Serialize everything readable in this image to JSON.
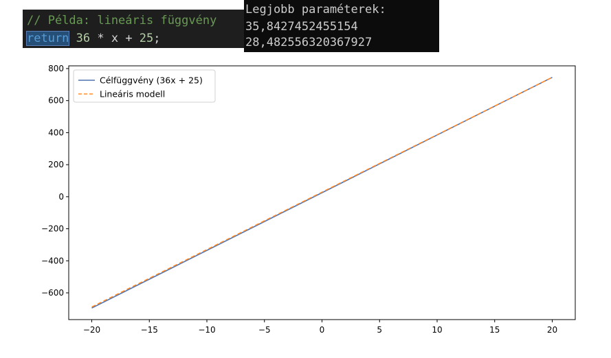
{
  "code_editor": {
    "comment_line": "// Példa: lineáris függvény",
    "return_keyword": "return",
    "expr_a": " 36",
    "expr_b": " * x + ",
    "expr_c": "25",
    "expr_d": ";"
  },
  "console": {
    "header": "Legjobb paraméterek:",
    "values": [
      "35,8427452455154",
      "28,482556320367927"
    ]
  },
  "colors": {
    "target_line": "#4c72b0",
    "model_line": "#ff8c2a",
    "editor_bg": "#1e1e1e",
    "console_bg": "#0c0c0c"
  },
  "chart_data": {
    "type": "line",
    "x": [
      -20,
      20
    ],
    "series": [
      {
        "name": "Célfüggvény (36x + 25)",
        "style": "solid",
        "values": [
          -695,
          745
        ]
      },
      {
        "name": "Lineáris modell",
        "style": "dashed",
        "values": [
          -688.37,
          745.33
        ]
      }
    ],
    "xlim": [
      -22,
      22
    ],
    "ylim": [
      -767,
      817
    ],
    "xticks": [
      -20,
      -15,
      -10,
      -5,
      0,
      5,
      10,
      15,
      20
    ],
    "xtick_labels": [
      "−20",
      "−15",
      "−10",
      "−5",
      "0",
      "5",
      "10",
      "15",
      "20"
    ],
    "yticks": [
      -600,
      -400,
      -200,
      0,
      200,
      400,
      600,
      800
    ],
    "ytick_labels": [
      "−600",
      "−400",
      "−200",
      "0",
      "200",
      "400",
      "600",
      "800"
    ],
    "legend_position": "top-left",
    "grid": false
  }
}
